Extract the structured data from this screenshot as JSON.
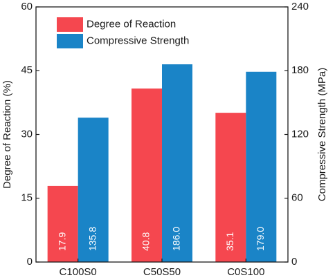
{
  "chart_data": {
    "type": "bar",
    "categories": [
      "C100S0",
      "C50S50",
      "C0S100"
    ],
    "series": [
      {
        "name": "Degree of Reaction",
        "axis": "left",
        "color": "#f5474f",
        "values": [
          17.9,
          40.8,
          35.1
        ],
        "labels": [
          "17.9",
          "40.8",
          "35.1"
        ]
      },
      {
        "name": "Compressive Strength",
        "axis": "right",
        "color": "#1a84c7",
        "values": [
          135.8,
          186.0,
          179.0
        ],
        "labels": [
          "135.8",
          "186.0",
          "179.0"
        ]
      }
    ],
    "ylabel_left": "Degree of Reaction (%)",
    "ylabel_right": "Compressive Strength (MPa)",
    "ylim_left": [
      0,
      60
    ],
    "ylim_right": [
      0,
      240
    ],
    "yticks_left": [
      "0",
      "15",
      "30",
      "45",
      "60"
    ],
    "yticks_right": [
      "0",
      "60",
      "120",
      "180",
      "240"
    ],
    "grid": false,
    "legend_position": "top-left"
  }
}
